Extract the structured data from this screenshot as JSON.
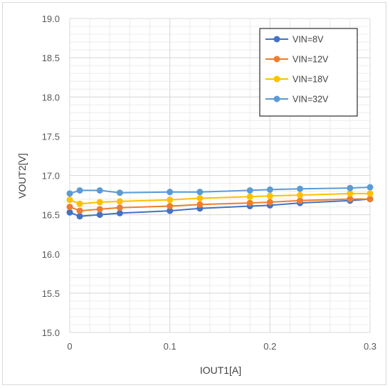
{
  "chart_data": {
    "type": "line",
    "xlabel": "IOUT1[A]",
    "ylabel": "VOUT2[V]",
    "xlim": [
      0,
      0.3
    ],
    "ylim": [
      15.0,
      19.0
    ],
    "x_ticks": [
      0,
      0.1,
      0.2,
      0.3
    ],
    "x_tick_labels": [
      "0",
      "0.1",
      "0.2",
      "0.3"
    ],
    "y_ticks": [
      15.0,
      15.5,
      16.0,
      16.5,
      17.0,
      17.5,
      18.0,
      18.5,
      19.0
    ],
    "y_tick_labels": [
      "15.0",
      "15.5",
      "16.0",
      "16.5",
      "17.0",
      "17.5",
      "18.0",
      "18.5",
      "19.0"
    ],
    "grid": true,
    "minor_grid": true,
    "legend_position": "top-right",
    "series": [
      {
        "name": "VIN=8V",
        "color": "#4472c4",
        "x": [
          0,
          0.01,
          0.03,
          0.05,
          0.1,
          0.13,
          0.18,
          0.2,
          0.23,
          0.28,
          0.3
        ],
        "y": [
          16.53,
          16.48,
          16.5,
          16.52,
          16.55,
          16.58,
          16.61,
          16.62,
          16.65,
          16.68,
          16.7
        ]
      },
      {
        "name": "VIN=12V",
        "color": "#ed7d31",
        "x": [
          0,
          0.01,
          0.03,
          0.05,
          0.1,
          0.13,
          0.18,
          0.2,
          0.23,
          0.28,
          0.3
        ],
        "y": [
          16.6,
          16.55,
          16.57,
          16.59,
          16.61,
          16.63,
          16.65,
          16.66,
          16.68,
          16.7,
          16.7
        ]
      },
      {
        "name": "VIN=18V",
        "color": "#ffc000",
        "x": [
          0,
          0.01,
          0.03,
          0.05,
          0.1,
          0.13,
          0.18,
          0.2,
          0.23,
          0.28,
          0.3
        ],
        "y": [
          16.69,
          16.64,
          16.66,
          16.67,
          16.69,
          16.71,
          16.73,
          16.74,
          16.75,
          16.77,
          16.77
        ]
      },
      {
        "name": "VIN=32V",
        "color": "#5b9bd5",
        "x": [
          0,
          0.01,
          0.03,
          0.05,
          0.1,
          0.13,
          0.18,
          0.2,
          0.23,
          0.28,
          0.3
        ],
        "y": [
          16.77,
          16.81,
          16.81,
          16.78,
          16.79,
          16.79,
          16.81,
          16.82,
          16.83,
          16.84,
          16.85
        ]
      }
    ]
  },
  "colors": {
    "gridline": "#d9d9d9",
    "minor_gridline": "#ececec",
    "frame": "#d9d9d9"
  }
}
